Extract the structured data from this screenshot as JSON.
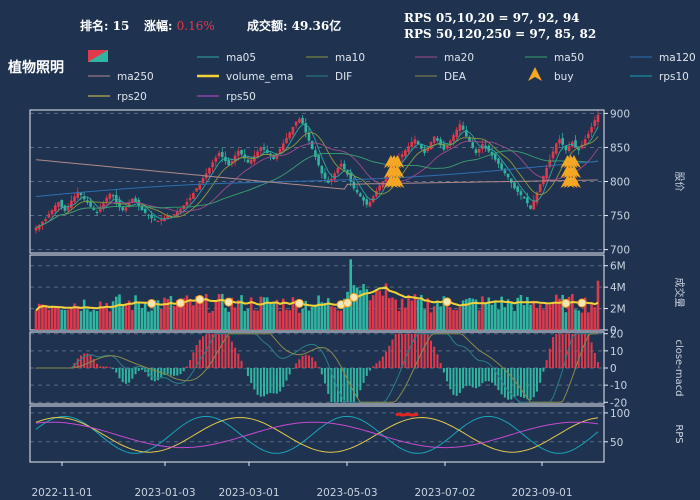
{
  "header": {
    "rank_label": "排名:",
    "rank_value": "15",
    "change_label": "涨幅:",
    "change_value": "0.16%",
    "turnover_label": "成交额:",
    "turnover_value": "49.36亿",
    "rps_line1": "RPS 05,10,20 = 97, 92, 94",
    "rps_line2": "RPS 50,120,250 = 97, 85, 82"
  },
  "sector_name": "植物照明",
  "legend": [
    {
      "label": "",
      "color": "#e0394b",
      "type": "candle"
    },
    {
      "label": "ma05",
      "color": "#2fa7a0",
      "type": "line"
    },
    {
      "label": "ma10",
      "color": "#8a9a3a",
      "type": "line"
    },
    {
      "label": "ma20",
      "color": "#a04a8a",
      "type": "line"
    },
    {
      "label": "ma50",
      "color": "#3aa070",
      "type": "line"
    },
    {
      "label": "ma120",
      "color": "#2f6fb0",
      "type": "line"
    },
    {
      "label": "ma250",
      "color": "#b08a8a",
      "type": "line"
    },
    {
      "label": "volume_ema",
      "color": "#f2d23a",
      "type": "thick"
    },
    {
      "label": "DIF",
      "color": "#2a7f8a",
      "type": "line"
    },
    {
      "label": "DEA",
      "color": "#8a8a4a",
      "type": "line"
    },
    {
      "label": "buy",
      "color": "#f5a623",
      "type": "marker"
    },
    {
      "label": "rps10",
      "color": "#1aa3b8",
      "type": "line"
    },
    {
      "label": "rps20",
      "color": "#e6c84a",
      "type": "line"
    },
    {
      "label": "rps50",
      "color": "#c64ad0",
      "type": "line"
    }
  ],
  "chart_data": {
    "type": "candlestick-multi-panel",
    "x_ticks": [
      "2022-11-01",
      "2023-01-03",
      "2023-03-01",
      "2023-05-03",
      "2023-07-02",
      "2023-09-01"
    ],
    "panels": [
      {
        "name": "price",
        "ylabel": "股价",
        "yticks": [
          700,
          750,
          800,
          850,
          900
        ],
        "ylim": [
          695,
          905
        ],
        "close_series": [
          732,
          736,
          741,
          745,
          752,
          758,
          765,
          770,
          762,
          757,
          763,
          772,
          778,
          785,
          780,
          774,
          769,
          763,
          758,
          755,
          760,
          768,
          776,
          782,
          778,
          770,
          762,
          758,
          762,
          768,
          775,
          770,
          764,
          758,
          754,
          750,
          746,
          744,
          742,
          744,
          747,
          750,
          748,
          752,
          756,
          760,
          765,
          770,
          776,
          783,
          790,
          797,
          805,
          812,
          820,
          828,
          835,
          842,
          836,
          830,
          824,
          830,
          838,
          845,
          840,
          834,
          828,
          832,
          838,
          844,
          850,
          847,
          842,
          838,
          833,
          840,
          848,
          856,
          864,
          872,
          880,
          888,
          892,
          885,
          872,
          860,
          848,
          836,
          824,
          812,
          804,
          798,
          804,
          812,
          820,
          826,
          818,
          810,
          800,
          790,
          784,
          778,
          772,
          766,
          770,
          778,
          786,
          794,
          800,
          808,
          815,
          822,
          828,
          834,
          840,
          846,
          852,
          858,
          862,
          855,
          848,
          842,
          850,
          858,
          866,
          860,
          853,
          847,
          852,
          860,
          868,
          876,
          884,
          876,
          866,
          858,
          850,
          842,
          848,
          855,
          850,
          844,
          838,
          832,
          826,
          818,
          812,
          806,
          798,
          790,
          785,
          780,
          775,
          768,
          760,
          772,
          784,
          796,
          808,
          820,
          832,
          844,
          856,
          862,
          854,
          846,
          852,
          858,
          850,
          846,
          854,
          862,
          870,
          880,
          890,
          898
        ]
      },
      {
        "name": "volume",
        "ylabel": "成交量",
        "yticks": [
          "0",
          "2M",
          "4M",
          "6M"
        ],
        "ylim": [
          0,
          7
        ]
      },
      {
        "name": "macd",
        "ylabel": "close-macd",
        "yticks": [
          -20,
          -10,
          0,
          10,
          20
        ],
        "ylim": [
          -20,
          20
        ]
      },
      {
        "name": "rps",
        "ylabel": "RPS",
        "yticks": [
          50,
          100
        ],
        "ylim": [
          20,
          110
        ]
      }
    ],
    "buy_signals_count": 6
  }
}
